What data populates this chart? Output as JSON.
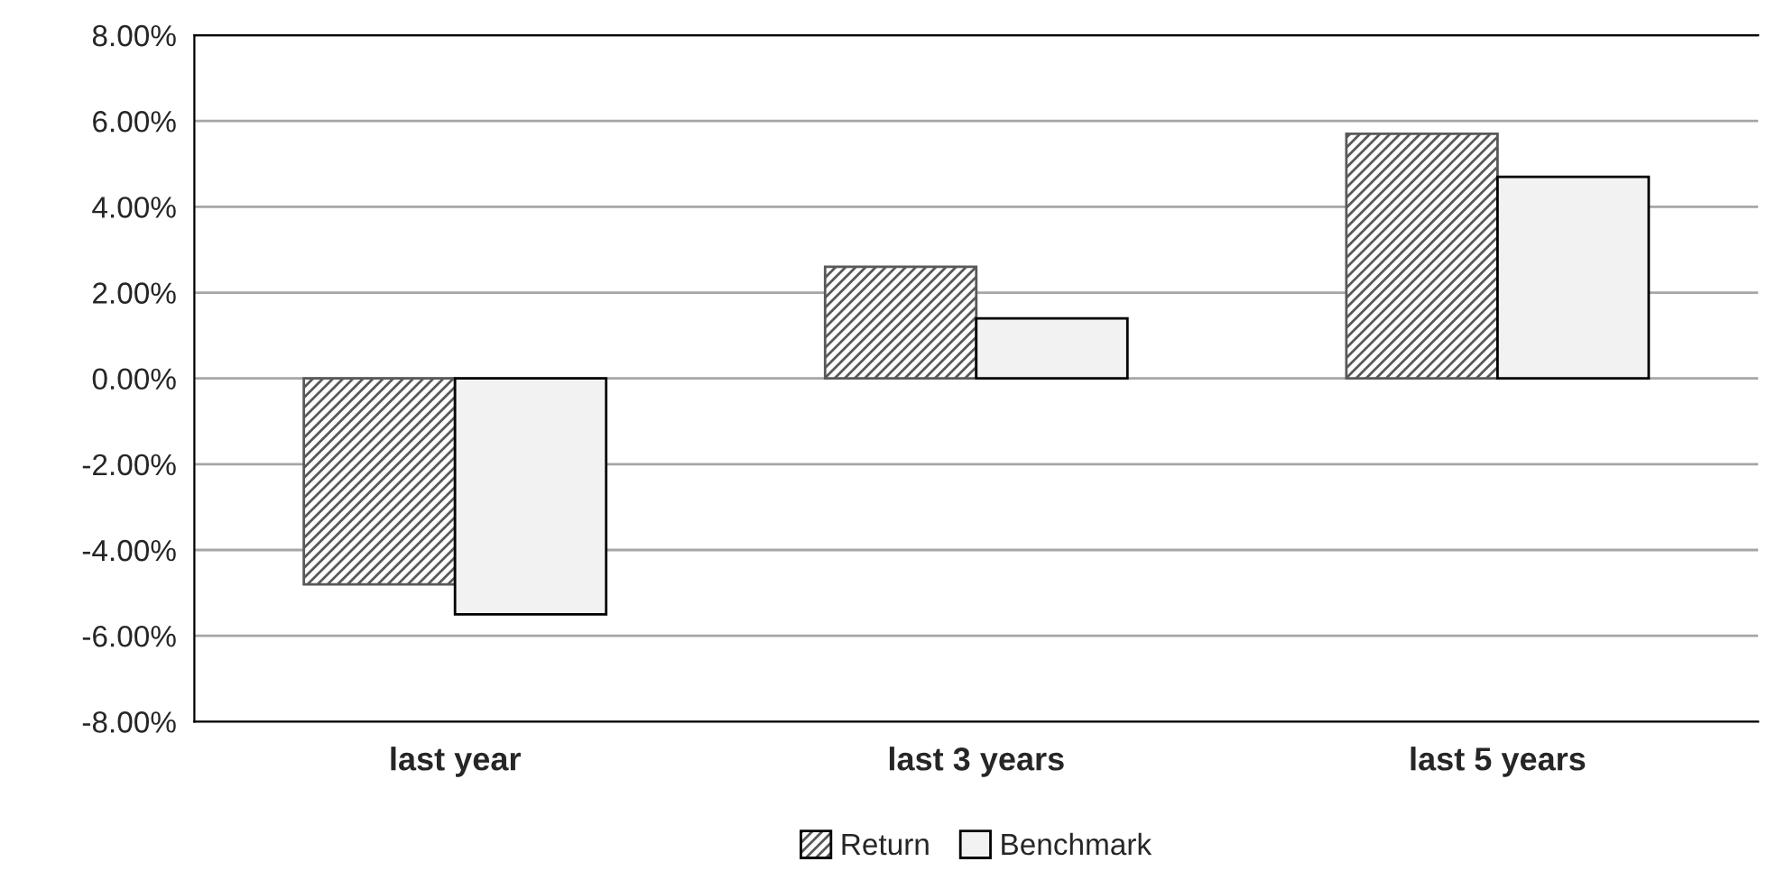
{
  "chart_data": {
    "type": "bar",
    "categories": [
      "last year",
      "last 3 years",
      "last 5 years"
    ],
    "series": [
      {
        "name": "Return",
        "color": "#595959",
        "values": [
          -4.8,
          2.6,
          5.7
        ]
      },
      {
        "name": "Benchmark",
        "color": "#f2f2f2",
        "values": [
          -5.5,
          1.4,
          4.7
        ]
      }
    ],
    "ylim": [
      -8,
      8
    ],
    "yticks": [
      {
        "value": -8,
        "label": "-8.00%"
      },
      {
        "value": -6,
        "label": "-6.00%"
      },
      {
        "value": -4,
        "label": "-4.00%"
      },
      {
        "value": -2,
        "label": "-2.00%"
      },
      {
        "value": 0,
        "label": "0.00%"
      },
      {
        "value": 2,
        "label": "2.00%"
      },
      {
        "value": 4,
        "label": "4.00%"
      },
      {
        "value": 6,
        "label": "6.00%"
      },
      {
        "value": 8,
        "label": "8.00%"
      }
    ],
    "grid": "y",
    "legend": "bottom"
  }
}
